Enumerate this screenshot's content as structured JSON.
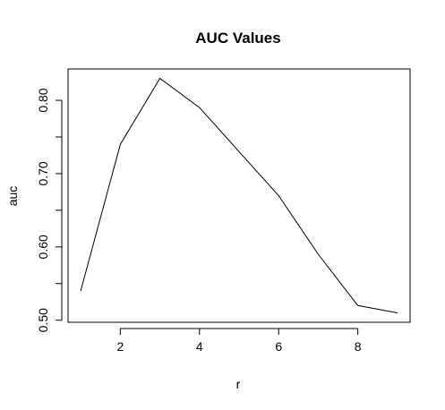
{
  "chart_data": {
    "type": "line",
    "title": "AUC Values",
    "xlabel": "r",
    "ylabel": "auc",
    "x": [
      1,
      2,
      3,
      4,
      5,
      6,
      7,
      8,
      9
    ],
    "series": [
      {
        "values": [
          0.54,
          0.74,
          0.83,
          0.79,
          0.73,
          0.67,
          0.59,
          0.52,
          0.51
        ]
      }
    ],
    "xlim": [
      0.68,
      9.32
    ],
    "ylim": [
      0.4972,
      0.8428
    ],
    "x_ticks": [
      2,
      4,
      6,
      8
    ],
    "x_tick_labels": [
      "2",
      "4",
      "6",
      "8"
    ],
    "y_ticks": [
      0.5,
      0.55,
      0.6,
      0.65,
      0.7,
      0.75,
      0.8
    ],
    "y_tick_labels": [
      "0.50",
      "",
      "0.60",
      "",
      "0.70",
      "",
      "0.80"
    ],
    "grid": false,
    "legend": "none",
    "line_color": "#000000"
  }
}
